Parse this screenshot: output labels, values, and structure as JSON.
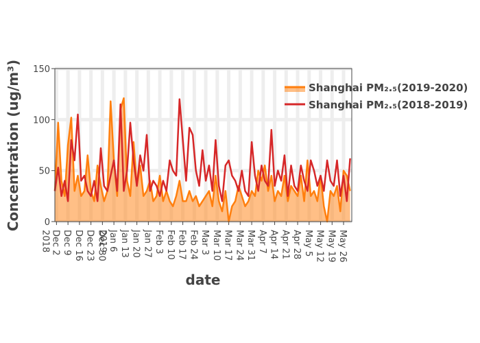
{
  "chart_data": {
    "type": "line",
    "xlabel": "date",
    "ylabel": "Concentration (ug/m³)",
    "x": [
      "2018-12-01",
      "2018-12-03",
      "2018-12-05",
      "2018-12-07",
      "2018-12-09",
      "2018-12-11",
      "2018-12-13",
      "2018-12-15",
      "2018-12-17",
      "2018-12-19",
      "2018-12-21",
      "2018-12-23",
      "2018-12-25",
      "2018-12-27",
      "2018-12-29",
      "2018-12-31",
      "2019-01-02",
      "2019-01-04",
      "2019-01-06",
      "2019-01-08",
      "2019-01-10",
      "2019-01-12",
      "2019-01-14",
      "2019-01-16",
      "2019-01-18",
      "2019-01-20",
      "2019-01-22",
      "2019-01-24",
      "2019-01-26",
      "2019-01-28",
      "2019-01-30",
      "2019-02-01",
      "2019-02-03",
      "2019-02-05",
      "2019-02-07",
      "2019-02-09",
      "2019-02-11",
      "2019-02-13",
      "2019-02-15",
      "2019-02-17",
      "2019-02-19",
      "2019-02-21",
      "2019-02-23",
      "2019-02-25",
      "2019-02-27",
      "2019-03-01",
      "2019-03-03",
      "2019-03-05",
      "2019-03-07",
      "2019-03-09",
      "2019-03-11",
      "2019-03-13",
      "2019-03-15",
      "2019-03-17",
      "2019-03-19",
      "2019-03-21",
      "2019-03-23",
      "2019-03-25",
      "2019-03-27",
      "2019-03-29",
      "2019-03-31",
      "2019-04-02",
      "2019-04-04",
      "2019-04-06",
      "2019-04-08",
      "2019-04-10",
      "2019-04-12",
      "2019-04-14",
      "2019-04-16",
      "2019-04-18",
      "2019-04-20",
      "2019-04-22",
      "2019-04-24",
      "2019-04-26",
      "2019-04-28",
      "2019-04-30",
      "2019-05-02",
      "2019-05-04",
      "2019-05-06",
      "2019-05-08",
      "2019-05-10",
      "2019-05-12",
      "2019-05-14",
      "2019-05-16",
      "2019-05-18",
      "2019-05-20",
      "2019-05-22",
      "2019-05-24",
      "2019-05-26",
      "2019-05-28",
      "2019-05-30"
    ],
    "series": [
      {
        "name": "Shanghai PM₂.₅(2019-2020)",
        "color": "#ff7f0e",
        "fill": "rgba(255,127,14,0.5)",
        "values": [
          30,
          97,
          40,
          25,
          75,
          102,
          30,
          45,
          25,
          30,
          65,
          30,
          20,
          55,
          35,
          20,
          30,
          118,
          60,
          25,
          110,
          121,
          40,
          25,
          78,
          35,
          55,
          25,
          30,
          40,
          20,
          25,
          45,
          20,
          30,
          20,
          15,
          25,
          40,
          20,
          20,
          30,
          20,
          25,
          15,
          20,
          25,
          30,
          15,
          45,
          20,
          10,
          30,
          0,
          15,
          20,
          35,
          25,
          15,
          20,
          30,
          25,
          50,
          40,
          55,
          30,
          45,
          20,
          30,
          25,
          45,
          20,
          35,
          30,
          25,
          45,
          20,
          60,
          25,
          30,
          20,
          45,
          15,
          0,
          30,
          25,
          35,
          10,
          50,
          45,
          30
        ]
      },
      {
        "name": "Shanghai PM₂.₅(2018-2019)",
        "color": "#d62728",
        "values": [
          30,
          53,
          25,
          40,
          20,
          80,
          60,
          105,
          40,
          45,
          30,
          25,
          40,
          20,
          72,
          35,
          30,
          45,
          60,
          30,
          115,
          30,
          50,
          97,
          60,
          35,
          65,
          50,
          85,
          30,
          40,
          35,
          25,
          40,
          30,
          60,
          50,
          45,
          120,
          80,
          40,
          92,
          85,
          50,
          35,
          70,
          40,
          55,
          30,
          80,
          35,
          20,
          55,
          60,
          45,
          40,
          30,
          50,
          30,
          25,
          78,
          45,
          30,
          55,
          40,
          35,
          90,
          35,
          50,
          40,
          65,
          25,
          55,
          35,
          30,
          55,
          40,
          30,
          60,
          50,
          35,
          45,
          30,
          60,
          40,
          35,
          60,
          25,
          45,
          20,
          62
        ]
      }
    ],
    "xlim": [
      "2018-12-01",
      "2019-05-31"
    ],
    "xticks": [
      {
        "value": "2018-12-02",
        "label": "Dec 2\n2018"
      },
      {
        "value": "2018-12-09",
        "label": "Dec 9"
      },
      {
        "value": "2018-12-16",
        "label": "Dec 16"
      },
      {
        "value": "2018-12-23",
        "label": "Dec 23"
      },
      {
        "value": "2018-12-30",
        "label": "Dec 30"
      },
      {
        "value": "2019-01-06",
        "label": "Jan 6\n2019"
      },
      {
        "value": "2019-01-13",
        "label": "Jan 13"
      },
      {
        "value": "2019-01-20",
        "label": "Jan 20"
      },
      {
        "value": "2019-01-27",
        "label": "Jan 27"
      },
      {
        "value": "2019-02-03",
        "label": "Feb 3"
      },
      {
        "value": "2019-02-10",
        "label": "Feb 10"
      },
      {
        "value": "2019-02-17",
        "label": "Feb 17"
      },
      {
        "value": "2019-02-24",
        "label": "Feb 24"
      },
      {
        "value": "2019-03-03",
        "label": "Mar 3"
      },
      {
        "value": "2019-03-10",
        "label": "Mar 10"
      },
      {
        "value": "2019-03-17",
        "label": "Mar 17"
      },
      {
        "value": "2019-03-24",
        "label": "Mar 24"
      },
      {
        "value": "2019-03-31",
        "label": "Mar 31"
      },
      {
        "value": "2019-04-07",
        "label": "Apr 7"
      },
      {
        "value": "2019-04-14",
        "label": "Apr 14"
      },
      {
        "value": "2019-04-21",
        "label": "Apr 21"
      },
      {
        "value": "2019-04-28",
        "label": "Apr 28"
      },
      {
        "value": "2019-05-05",
        "label": "May 5"
      },
      {
        "value": "2019-05-12",
        "label": "May 12"
      },
      {
        "value": "2019-05-19",
        "label": "May 19"
      },
      {
        "value": "2019-05-26",
        "label": "May 26"
      }
    ],
    "ylim": [
      0,
      150
    ],
    "yticks": [
      0,
      50,
      100,
      150
    ],
    "grid": true,
    "legend": "top-right"
  }
}
